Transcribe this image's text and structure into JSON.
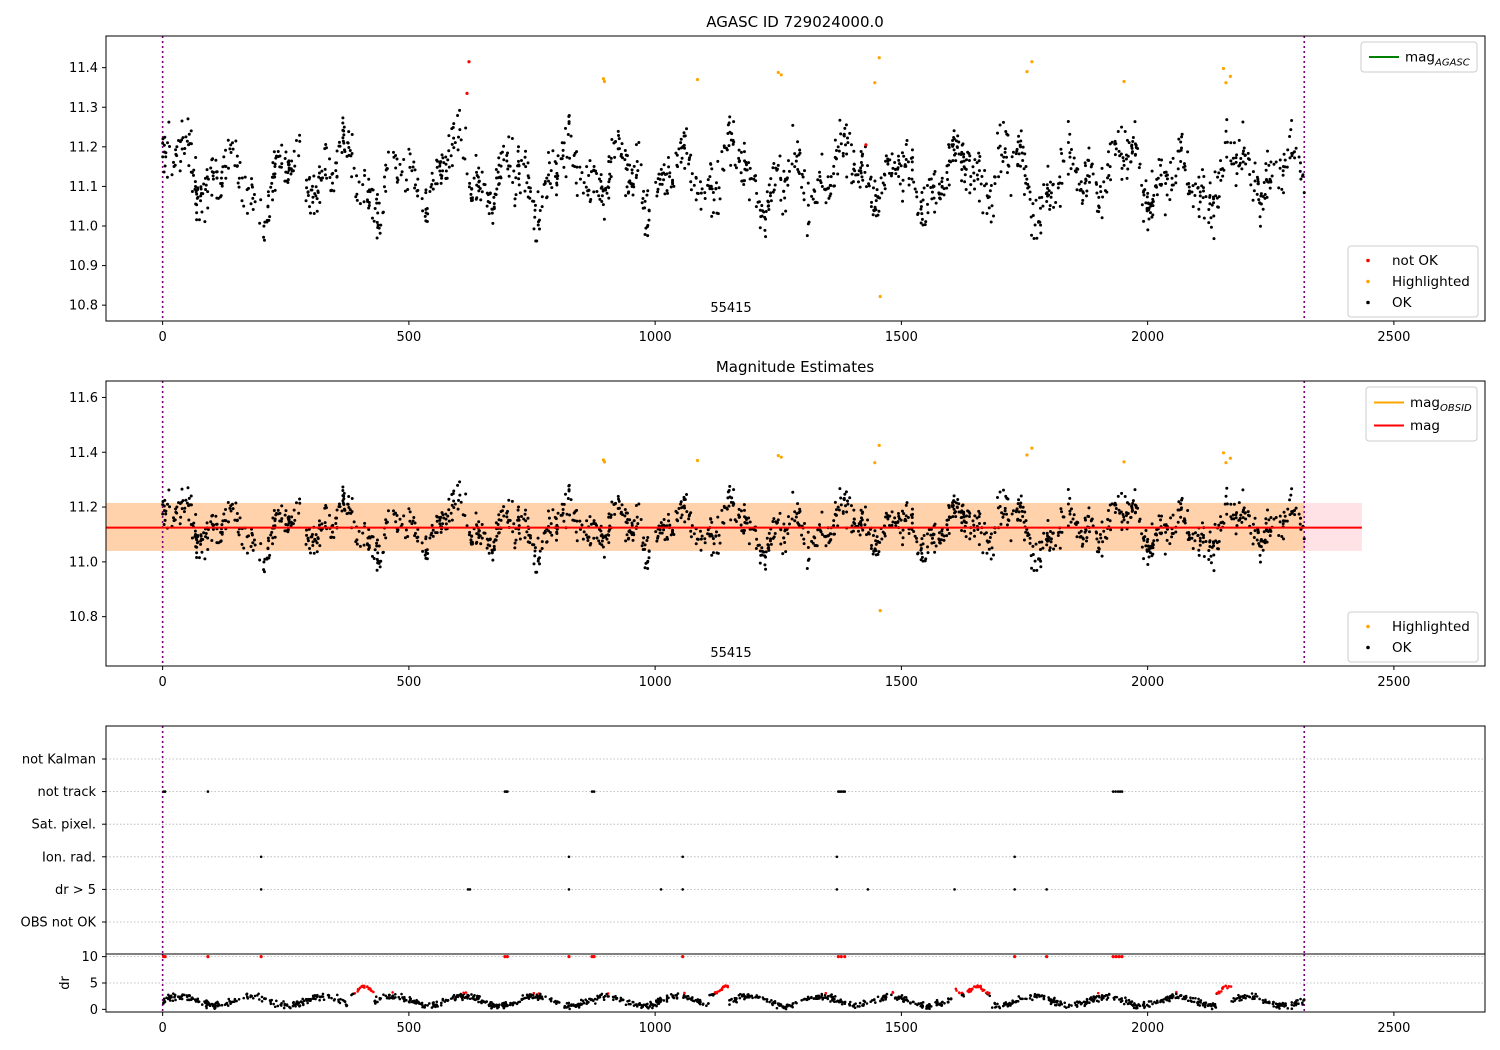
{
  "chart_data": [
    {
      "type": "scatter",
      "title": "AGASC ID 729024000.0",
      "annotation": "55415",
      "xlim": [
        -115,
        2685
      ],
      "ylim": [
        10.76,
        11.48
      ],
      "xticks": [
        0,
        500,
        1000,
        1500,
        2000,
        2500
      ],
      "yticks": [
        10.8,
        10.9,
        11.0,
        11.1,
        11.2,
        11.3,
        11.4
      ],
      "grid": false,
      "obs_boundaries": [
        0,
        2318
      ],
      "legend_top": {
        "placement": "top-right",
        "entries": [
          {
            "label": "mag",
            "subscript": "AGASC",
            "color": "#008000"
          }
        ]
      },
      "legend_bottom": {
        "placement": "bottom-right",
        "entries": [
          {
            "label": "not OK",
            "color": "#ff0000"
          },
          {
            "label": "Highlighted",
            "color": "#ffa500"
          },
          {
            "label": "OK",
            "color": "#000000"
          }
        ]
      },
      "series": [
        {
          "name": "not OK",
          "color": "#ff0000",
          "x": [
            622,
            618,
            1428
          ],
          "y": [
            11.415,
            11.335,
            11.205
          ]
        },
        {
          "name": "Highlighted",
          "color": "#ffa500",
          "x": [
            895,
            897,
            1086,
            1250,
            1256,
            1446,
            1455,
            1457,
            1755,
            1765,
            1952,
            2154,
            2159,
            2168
          ],
          "y": [
            11.372,
            11.365,
            11.37,
            11.388,
            11.382,
            11.362,
            11.425,
            10.822,
            11.39,
            11.415,
            11.365,
            11.398,
            11.362,
            11.378
          ]
        },
        {
          "name": "OK",
          "color": "#000000",
          "generated": true
        }
      ]
    },
    {
      "type": "scatter",
      "title": "Magnitude Estimates",
      "annotation": "55415",
      "xlim": [
        -115,
        2685
      ],
      "ylim": [
        10.62,
        11.66
      ],
      "xticks": [
        0,
        500,
        1000,
        1500,
        2000,
        2500
      ],
      "yticks": [
        10.8,
        11.0,
        11.2,
        11.4,
        11.6
      ],
      "grid": false,
      "obs_boundaries": [
        0,
        2318
      ],
      "mag_line": {
        "value": 11.125,
        "x_range": [
          -115,
          2435
        ],
        "color": "#ff0000"
      },
      "band_red": {
        "y_range": [
          11.04,
          11.215
        ],
        "x_range": [
          -115,
          2435
        ],
        "color": "#ffb6c1"
      },
      "band_orange": {
        "y_range": [
          11.04,
          11.215
        ],
        "x_range": [
          -115,
          2318
        ],
        "color": "#ffa500"
      },
      "legend_top": {
        "placement": "top-right",
        "entries": [
          {
            "label": "mag",
            "subscript": "OBSID",
            "color": "#ffa500"
          },
          {
            "label": "mag",
            "subscript": "",
            "color": "#ff0000"
          }
        ]
      },
      "legend_bottom": {
        "placement": "bottom-right",
        "entries": [
          {
            "label": "Highlighted",
            "color": "#ffa500"
          },
          {
            "label": "OK",
            "color": "#000000"
          }
        ]
      }
    },
    {
      "type": "scatter",
      "categories": [
        "not Kalman",
        "not track",
        "Sat. pixel.",
        "Ion. rad.",
        "dr > 5",
        "OBS not OK"
      ],
      "xlim": [
        -115,
        2685
      ],
      "xticks": [
        0,
        500,
        1000,
        1500,
        2000,
        2500
      ],
      "obs_boundaries": [
        0,
        2318
      ],
      "flags": {
        "not track": [
          2,
          5,
          92,
          695,
          698,
          700,
          872,
          876,
          1372,
          1375,
          1378,
          1382,
          1385,
          1930,
          1935,
          1940,
          1944,
          1948
        ],
        "Ion. rad.": [
          200,
          825,
          1056,
          1369,
          1730
        ],
        "dr > 5": [
          200,
          620,
          624,
          825,
          1012,
          1056,
          1369,
          1432,
          1608,
          1730,
          1795
        ]
      },
      "dr_panel": {
        "ylabel": "dr",
        "yticks": [
          0,
          5,
          10
        ],
        "ylim": [
          -0.5,
          10.5
        ],
        "threshold": 5,
        "clipped_at_10": [
          2,
          5,
          92,
          200,
          695,
          700,
          825,
          872,
          876,
          1056,
          1372,
          1378,
          1385,
          1730,
          1795,
          1930,
          1936,
          1942,
          1948
        ]
      }
    }
  ]
}
